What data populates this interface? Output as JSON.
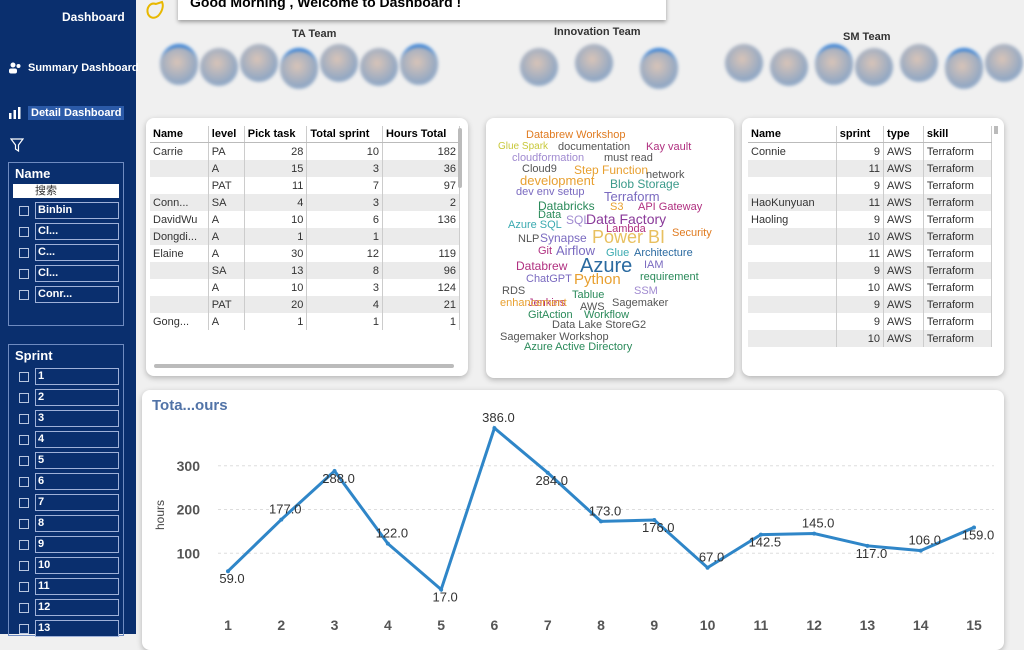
{
  "nav": {
    "dashboard": "Dashboard",
    "summary": "Summary Dashboard",
    "detail": "Detail Dashboard"
  },
  "greeting": "Good Morning , Welcome to  Dashboard !",
  "teams": [
    {
      "label": "TA Team"
    },
    {
      "label": "Innovation Team"
    },
    {
      "label": "SM Team"
    }
  ],
  "name_slicer": {
    "title": "Name",
    "search_placeholder": "搜索",
    "options": [
      "Binbin",
      "Cl...",
      "C...",
      "Cl...",
      "Conr..."
    ]
  },
  "sprint_slicer": {
    "title": "Sprint",
    "options": [
      "1",
      "2",
      "3",
      "4",
      "5",
      "6",
      "7",
      "8",
      "9",
      "10",
      "11",
      "12",
      "13"
    ]
  },
  "people_table": {
    "headers": [
      "Name",
      "level",
      "Pick task",
      "Total sprint",
      "Hours Total"
    ],
    "rows": [
      [
        "Carrie",
        "PA",
        "28",
        "10",
        "182"
      ],
      [
        "",
        "A",
        "15",
        "3",
        "36"
      ],
      [
        "",
        "PAT",
        "11",
        "7",
        "97"
      ],
      [
        "Conn...",
        "SA",
        "4",
        "3",
        "2"
      ],
      [
        "DavidWu",
        "A",
        "10",
        "6",
        "136"
      ],
      [
        "Dongdi...",
        "A",
        "1",
        "1",
        ""
      ],
      [
        "Elaine",
        "A",
        "30",
        "12",
        "119"
      ],
      [
        "",
        "SA",
        "13",
        "8",
        "96"
      ],
      [
        "",
        "A",
        "10",
        "3",
        "124"
      ],
      [
        "",
        "PAT",
        "20",
        "4",
        "21"
      ],
      [
        "Gong...",
        "A",
        "1",
        "1",
        "1"
      ]
    ]
  },
  "word_cloud": [
    {
      "t": "Databrew Workshop",
      "c": "#e07b20",
      "s": 11
    },
    {
      "t": "Glue Spark",
      "c": "#c8c83a",
      "s": 10
    },
    {
      "t": "documentation",
      "c": "#555",
      "s": 11
    },
    {
      "t": "Kay vault",
      "c": "#b03080",
      "s": 11
    },
    {
      "t": "cloudformation",
      "c": "#a08ad0",
      "s": 11
    },
    {
      "t": "must read",
      "c": "#555",
      "s": 11
    },
    {
      "t": "Cloud9",
      "c": "#555",
      "s": 11
    },
    {
      "t": "Step Function",
      "c": "#e8a030",
      "s": 12
    },
    {
      "t": "network",
      "c": "#555",
      "s": 11
    },
    {
      "t": "development",
      "c": "#e8a030",
      "s": 13
    },
    {
      "t": "Blob Storage",
      "c": "#3a9a8a",
      "s": 12
    },
    {
      "t": "dev env setup",
      "c": "#7a6ac0",
      "s": 11
    },
    {
      "t": "Terraform",
      "c": "#7a6ac0",
      "s": 13
    },
    {
      "t": "Databricks",
      "c": "#2a8a5a",
      "s": 12
    },
    {
      "t": "S3",
      "c": "#e8a030",
      "s": 11
    },
    {
      "t": "API Gateway",
      "c": "#b03080",
      "s": 11
    },
    {
      "t": "Data",
      "c": "#2a8a5a",
      "s": 11
    },
    {
      "t": "SQL",
      "c": "#a08ad0",
      "s": 12
    },
    {
      "t": "Data Factory",
      "c": "#8a3a9a",
      "s": 14
    },
    {
      "t": "Azure SQL",
      "c": "#3aaab0",
      "s": 11
    },
    {
      "t": "Lambda",
      "c": "#b03080",
      "s": 11
    },
    {
      "t": "NLP",
      "c": "#555",
      "s": 11
    },
    {
      "t": "Synapse",
      "c": "#7a6ac0",
      "s": 12
    },
    {
      "t": "Power BI",
      "c": "#e8c060",
      "s": 18
    },
    {
      "t": "Security",
      "c": "#e07b20",
      "s": 11
    },
    {
      "t": "Git",
      "c": "#b03080",
      "s": 11
    },
    {
      "t": "Airflow",
      "c": "#7a6ac0",
      "s": 13
    },
    {
      "t": "Glue",
      "c": "#3aaab0",
      "s": 11
    },
    {
      "t": "Architecture",
      "c": "#2a6aa0",
      "s": 11
    },
    {
      "t": "Databrew",
      "c": "#b03080",
      "s": 12
    },
    {
      "t": "Azure",
      "c": "#2a6aa0",
      "s": 20
    },
    {
      "t": "IAM",
      "c": "#7a6ac0",
      "s": 11
    },
    {
      "t": "ChatGPT",
      "c": "#7a6ac0",
      "s": 11
    },
    {
      "t": "Python",
      "c": "#e8a030",
      "s": 15
    },
    {
      "t": "requirement",
      "c": "#2a8a5a",
      "s": 11
    },
    {
      "t": "RDS",
      "c": "#555",
      "s": 11
    },
    {
      "t": "Jenkins",
      "c": "#b03080",
      "s": 11
    },
    {
      "t": "Tablue",
      "c": "#2a8a5a",
      "s": 11
    },
    {
      "t": "SSM",
      "c": "#a08ad0",
      "s": 11
    },
    {
      "t": "enhancement",
      "c": "#e8a030",
      "s": 11
    },
    {
      "t": "AWS",
      "c": "#555",
      "s": 11
    },
    {
      "t": "Sagemaker",
      "c": "#555",
      "s": 11
    },
    {
      "t": "GitAction",
      "c": "#2a8a5a",
      "s": 11
    },
    {
      "t": "Workflow",
      "c": "#2a8a5a",
      "s": 11
    },
    {
      "t": "Data Lake StoreG2",
      "c": "#555",
      "s": 11
    },
    {
      "t": "Sagemaker Workshop",
      "c": "#555",
      "s": 11
    },
    {
      "t": "Azure Active Directory",
      "c": "#2a8a5a",
      "s": 11
    }
  ],
  "skills_table": {
    "headers": [
      "Name",
      "sprint",
      "type",
      "skill"
    ],
    "rows": [
      [
        "Connie",
        "9",
        "AWS",
        "Terraform"
      ],
      [
        "",
        "11",
        "AWS",
        "Terraform"
      ],
      [
        "",
        "9",
        "AWS",
        "Terraform"
      ],
      [
        "HaoKunyuan",
        "11",
        "AWS",
        "Terraform"
      ],
      [
        "Haoling",
        "9",
        "AWS",
        "Terraform"
      ],
      [
        "",
        "10",
        "AWS",
        "Terraform"
      ],
      [
        "",
        "11",
        "AWS",
        "Terraform"
      ],
      [
        "",
        "9",
        "AWS",
        "Terraform"
      ],
      [
        "",
        "10",
        "AWS",
        "Terraform"
      ],
      [
        "",
        "9",
        "AWS",
        "Terraform"
      ],
      [
        "",
        "9",
        "AWS",
        "Terraform"
      ],
      [
        "",
        "10",
        "AWS",
        "Terraform"
      ]
    ]
  },
  "chart_title": "Tota...ours",
  "chart_data": {
    "type": "line",
    "title": "Tota...ours",
    "ylabel": "hours",
    "xlabel": "",
    "x": [
      1,
      2,
      3,
      4,
      5,
      6,
      7,
      8,
      9,
      10,
      11,
      12,
      13,
      14,
      15
    ],
    "series": [
      {
        "values": [
          59.0,
          177.0,
          288.0,
          122.0,
          17.0,
          386.0,
          284.0,
          173.0,
          176.0,
          67.0,
          142.5,
          145.0,
          117.0,
          106.0,
          159.0
        ]
      }
    ],
    "data_labels": [
      "59.0",
      "177.0",
      "288.0",
      "122.0",
      "17.0",
      "386.0",
      "284.0",
      "173.0",
      "176.0",
      "67.0",
      "142.5",
      "145.0",
      "117.0",
      "106.0",
      "159.0"
    ],
    "yticks": [
      100,
      200,
      300
    ],
    "ylim": [
      0,
      400
    ],
    "line_color": "#2f86c8"
  }
}
